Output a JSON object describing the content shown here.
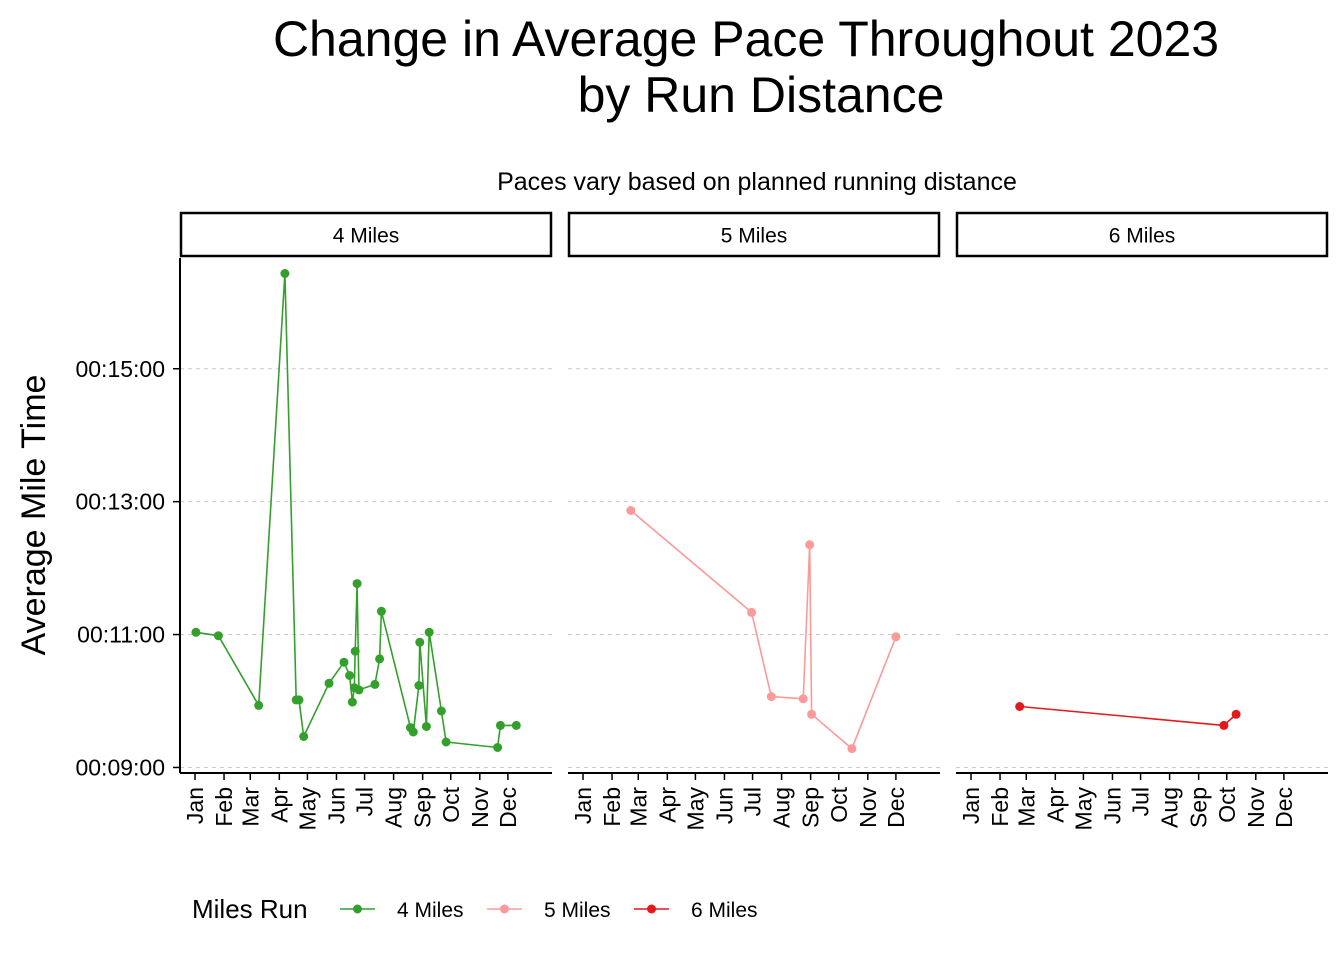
{
  "chart_data": {
    "type": "line",
    "title_lines": [
      "Change in Average Pace Throughout 2023",
      "by Run Distance"
    ],
    "subtitle": "Paces vary based on planned running distance",
    "xlabel": "",
    "ylabel": "Average Mile Time",
    "x_categories": [
      "Jan",
      "Feb",
      "Mar",
      "Apr",
      "May",
      "Jun",
      "Jul",
      "Aug",
      "Sep",
      "Oct",
      "Nov",
      "Dec"
    ],
    "x_range": [
      "2023-01-01",
      "2023-12-31"
    ],
    "ylim_seconds": [
      535,
      1000
    ],
    "y_ticks": [
      {
        "label": "00:09:00",
        "seconds": 540
      },
      {
        "label": "00:11:00",
        "seconds": 660
      },
      {
        "label": "00:13:00",
        "seconds": 780
      },
      {
        "label": "00:15:00",
        "seconds": 900
      }
    ],
    "grid": "horizontal major gridlines (dashed)",
    "legend_title": "Miles Run",
    "legend_position": "bottom",
    "panels": [
      {
        "label": "4 Miles",
        "color": "#33a02c",
        "points": [
          {
            "date": "2023-01-02",
            "pace_seconds": 662
          },
          {
            "date": "2023-01-26",
            "pace_seconds": 659
          },
          {
            "date": "2023-03-10",
            "pace_seconds": 596
          },
          {
            "date": "2023-04-07",
            "pace_seconds": 986
          },
          {
            "date": "2023-04-19",
            "pace_seconds": 601
          },
          {
            "date": "2023-04-22",
            "pace_seconds": 601
          },
          {
            "date": "2023-04-27",
            "pace_seconds": 568
          },
          {
            "date": "2023-05-24",
            "pace_seconds": 616
          },
          {
            "date": "2023-06-09",
            "pace_seconds": 635
          },
          {
            "date": "2023-06-15",
            "pace_seconds": 623
          },
          {
            "date": "2023-06-18",
            "pace_seconds": 599
          },
          {
            "date": "2023-06-20",
            "pace_seconds": 612
          },
          {
            "date": "2023-06-21",
            "pace_seconds": 645
          },
          {
            "date": "2023-06-23",
            "pace_seconds": 706
          },
          {
            "date": "2023-06-25",
            "pace_seconds": 610
          },
          {
            "date": "2023-07-12",
            "pace_seconds": 615
          },
          {
            "date": "2023-07-17",
            "pace_seconds": 638
          },
          {
            "date": "2023-07-19",
            "pace_seconds": 681
          },
          {
            "date": "2023-08-19",
            "pace_seconds": 576
          },
          {
            "date": "2023-08-22",
            "pace_seconds": 572
          },
          {
            "date": "2023-08-28",
            "pace_seconds": 614
          },
          {
            "date": "2023-08-29",
            "pace_seconds": 653
          },
          {
            "date": "2023-09-05",
            "pace_seconds": 577
          },
          {
            "date": "2023-09-08",
            "pace_seconds": 662
          },
          {
            "date": "2023-09-21",
            "pace_seconds": 591
          },
          {
            "date": "2023-09-26",
            "pace_seconds": 563
          },
          {
            "date": "2023-11-20",
            "pace_seconds": 558
          },
          {
            "date": "2023-11-23",
            "pace_seconds": 578
          },
          {
            "date": "2023-12-10",
            "pace_seconds": 578
          }
        ]
      },
      {
        "label": "5 Miles",
        "color": "#fb9a99",
        "points": [
          {
            "date": "2023-02-21",
            "pace_seconds": 772
          },
          {
            "date": "2023-06-30",
            "pace_seconds": 680
          },
          {
            "date": "2023-07-21",
            "pace_seconds": 604
          },
          {
            "date": "2023-08-24",
            "pace_seconds": 602
          },
          {
            "date": "2023-08-31",
            "pace_seconds": 741
          },
          {
            "date": "2023-09-02",
            "pace_seconds": 588
          },
          {
            "date": "2023-10-15",
            "pace_seconds": 557
          },
          {
            "date": "2023-12-01",
            "pace_seconds": 658
          }
        ]
      },
      {
        "label": "6 Miles",
        "color": "#e31a1c",
        "points": [
          {
            "date": "2023-02-22",
            "pace_seconds": 595
          },
          {
            "date": "2023-09-28",
            "pace_seconds": 578
          },
          {
            "date": "2023-10-11",
            "pace_seconds": 588
          }
        ]
      }
    ]
  }
}
